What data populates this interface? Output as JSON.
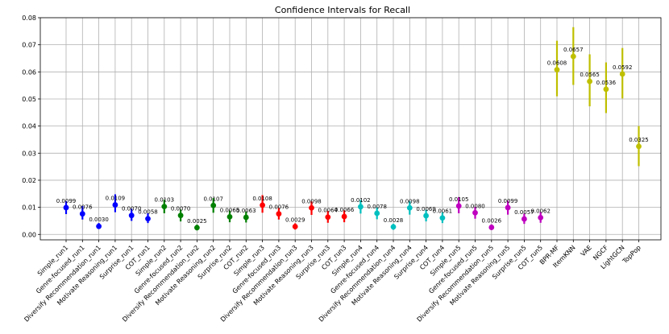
{
  "chart_data": {
    "type": "scatter",
    "title": "Confidence Intervals for Recall",
    "xlabel": "",
    "ylabel": "",
    "ylim": [
      -0.002,
      0.08
    ],
    "yticks": [
      0.0,
      0.01,
      0.02,
      0.03,
      0.04,
      0.05,
      0.06,
      0.07,
      0.08
    ],
    "ytick_labels": [
      "0.00",
      "0.01",
      "0.02",
      "0.03",
      "0.04",
      "0.05",
      "0.06",
      "0.07",
      "0.08"
    ],
    "grid": true,
    "colors": {
      "run1": "#0000ff",
      "run2": "#008000",
      "run3": "#ff0000",
      "run4": "#00bfbf",
      "run5": "#bf00bf",
      "baseline": "#bfbf00"
    },
    "points": [
      {
        "label": "Simple_run1",
        "value": 0.0099,
        "text": "0.0099",
        "low": 0.0075,
        "high": 0.0123,
        "group": "run1"
      },
      {
        "label": "Genre-focused_run1",
        "value": 0.0076,
        "text": "0.0076",
        "low": 0.0055,
        "high": 0.0105,
        "group": "run1"
      },
      {
        "label": "Diversify Recommendation_run1",
        "value": 0.003,
        "text": "0.0030",
        "low": 0.002,
        "high": 0.0042,
        "group": "run1"
      },
      {
        "label": "Motivate Reasoning_run1",
        "value": 0.0109,
        "text": "0.0109",
        "low": 0.0082,
        "high": 0.0148,
        "group": "run1"
      },
      {
        "label": "Surprise_run1",
        "value": 0.007,
        "text": "0.0070",
        "low": 0.005,
        "high": 0.0095,
        "group": "run1"
      },
      {
        "label": "COT_run1",
        "value": 0.0058,
        "text": "0.0058",
        "low": 0.0042,
        "high": 0.0078,
        "group": "run1"
      },
      {
        "label": "Simple_run2",
        "value": 0.0103,
        "text": "0.0103",
        "low": 0.0078,
        "high": 0.0128,
        "group": "run2"
      },
      {
        "label": "Genre-focused_run2",
        "value": 0.007,
        "text": "0.0070",
        "low": 0.0048,
        "high": 0.0092,
        "group": "run2"
      },
      {
        "label": "Diversify Recommendation_run2",
        "value": 0.0025,
        "text": "0.0025",
        "low": 0.0015,
        "high": 0.0036,
        "group": "run2"
      },
      {
        "label": "Motivate Reasoning_run2",
        "value": 0.0107,
        "text": "0.0107",
        "low": 0.008,
        "high": 0.0134,
        "group": "run2"
      },
      {
        "label": "Surprise_run2",
        "value": 0.0065,
        "text": "0.0065",
        "low": 0.0045,
        "high": 0.0088,
        "group": "run2"
      },
      {
        "label": "COT_run2",
        "value": 0.0063,
        "text": "0.0063",
        "low": 0.0044,
        "high": 0.0085,
        "group": "run2"
      },
      {
        "label": "Simple_run3",
        "value": 0.0108,
        "text": "0.0108",
        "low": 0.008,
        "high": 0.0145,
        "group": "run3"
      },
      {
        "label": "Genre-focused_run3",
        "value": 0.0076,
        "text": "0.0076",
        "low": 0.0055,
        "high": 0.0098,
        "group": "run3"
      },
      {
        "label": "Diversify Recommendation_run3",
        "value": 0.0029,
        "text": "0.0029",
        "low": 0.0018,
        "high": 0.0041,
        "group": "run3"
      },
      {
        "label": "Motivate Reasoning_run3",
        "value": 0.0098,
        "text": "0.0098",
        "low": 0.0072,
        "high": 0.0122,
        "group": "run3"
      },
      {
        "label": "Surprise_run3",
        "value": 0.0064,
        "text": "0.0064",
        "low": 0.0043,
        "high": 0.0087,
        "group": "run3"
      },
      {
        "label": "COT_run3",
        "value": 0.0066,
        "text": "0.0066",
        "low": 0.0045,
        "high": 0.0089,
        "group": "run3"
      },
      {
        "label": "Simple_run4",
        "value": 0.0102,
        "text": "0.0102",
        "low": 0.0077,
        "high": 0.0127,
        "group": "run4"
      },
      {
        "label": "Genre-focused_run4",
        "value": 0.0078,
        "text": "0.0078",
        "low": 0.0056,
        "high": 0.01,
        "group": "run4"
      },
      {
        "label": "Diversify Recommendation_run4",
        "value": 0.0028,
        "text": "0.0028",
        "low": 0.0017,
        "high": 0.0039,
        "group": "run4"
      },
      {
        "label": "Motivate Reasoning_run4",
        "value": 0.0098,
        "text": "0.0098",
        "low": 0.0073,
        "high": 0.0123,
        "group": "run4"
      },
      {
        "label": "Surprise_run4",
        "value": 0.0069,
        "text": "0.0069",
        "low": 0.0048,
        "high": 0.0091,
        "group": "run4"
      },
      {
        "label": "COT_run4",
        "value": 0.0061,
        "text": "0.0061",
        "low": 0.0042,
        "high": 0.0082,
        "group": "run4"
      },
      {
        "label": "Simple_run5",
        "value": 0.0105,
        "text": "0.0105",
        "low": 0.0078,
        "high": 0.0138,
        "group": "run5"
      },
      {
        "label": "Genre-focused_run5",
        "value": 0.008,
        "text": "0.0080",
        "low": 0.0058,
        "high": 0.0102,
        "group": "run5"
      },
      {
        "label": "Diversify Recommendation_run5",
        "value": 0.0026,
        "text": "0.0026",
        "low": 0.0016,
        "high": 0.0037,
        "group": "run5"
      },
      {
        "label": "Motivate Reasoning_run5",
        "value": 0.0099,
        "text": "0.0099",
        "low": 0.0073,
        "high": 0.0125,
        "group": "run5"
      },
      {
        "label": "Surprise_run5",
        "value": 0.0057,
        "text": "0.0057",
        "low": 0.0039,
        "high": 0.0077,
        "group": "run5"
      },
      {
        "label": "COT_run5",
        "value": 0.0062,
        "text": "0.0062",
        "low": 0.0043,
        "high": 0.0083,
        "group": "run5"
      },
      {
        "label": "BPR-MF",
        "value": 0.0608,
        "text": "0.0608",
        "low": 0.051,
        "high": 0.0715,
        "group": "baseline"
      },
      {
        "label": "ItemKNN",
        "value": 0.0657,
        "text": "0.0657",
        "low": 0.0552,
        "high": 0.0765,
        "group": "baseline"
      },
      {
        "label": "VAE",
        "value": 0.0565,
        "text": "0.0565",
        "low": 0.0473,
        "high": 0.0665,
        "group": "baseline"
      },
      {
        "label": "NGCF",
        "value": 0.0536,
        "text": "0.0536",
        "low": 0.0448,
        "high": 0.0635,
        "group": "baseline"
      },
      {
        "label": "LightGCN",
        "value": 0.0592,
        "text": "0.0592",
        "low": 0.0502,
        "high": 0.0688,
        "group": "baseline"
      },
      {
        "label": "TopPop",
        "value": 0.0325,
        "text": "0.0325",
        "low": 0.0252,
        "high": 0.04,
        "group": "baseline"
      }
    ]
  }
}
